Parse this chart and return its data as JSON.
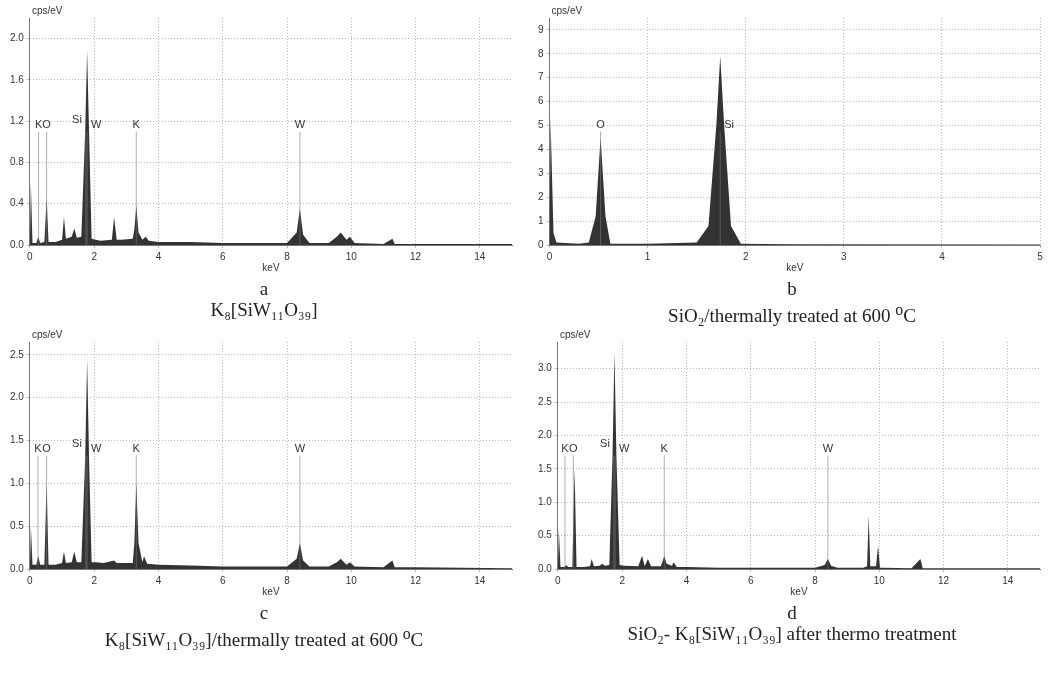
{
  "chart_data": [
    {
      "type": "area",
      "title": "a",
      "subtitle": "K₈[SiW₁₁O₃₉]",
      "xlabel": "keV",
      "ylabel": "cps/eV",
      "xlim": [
        0,
        15
      ],
      "xticks": [
        0,
        2,
        4,
        6,
        8,
        10,
        12,
        14
      ],
      "ylim": [
        0,
        2.2
      ],
      "yticks": [
        {
          "value": 0,
          "label": "0.0"
        },
        0.4,
        0.8,
        1.2,
        1.6,
        {
          "value": 2,
          "label": "2.0"
        }
      ],
      "grid": true,
      "series": [
        {
          "color": "#333333",
          "x": [
            0,
            0.03,
            0.08,
            0.2,
            0.26,
            0.32,
            0.45,
            0.52,
            0.58,
            0.8,
            1.0,
            1.06,
            1.12,
            1.3,
            1.38,
            1.46,
            1.6,
            1.72,
            1.78,
            1.84,
            1.92,
            2.05,
            2.2,
            2.55,
            2.62,
            2.7,
            2.85,
            3.2,
            3.25,
            3.31,
            3.38,
            3.5,
            3.6,
            3.7,
            4,
            5,
            6,
            7,
            7.5,
            8,
            8.3,
            8.4,
            8.5,
            8.7,
            9.3,
            9.55,
            9.67,
            9.85,
            9.96,
            10.1,
            11,
            11.28,
            11.35,
            12,
            15
          ],
          "values": [
            0,
            0.6,
            0.02,
            0.02,
            0.08,
            0.02,
            0.03,
            0.45,
            0.03,
            0.03,
            0.05,
            0.27,
            0.06,
            0.08,
            0.16,
            0.07,
            0.08,
            1.1,
            1.88,
            1.1,
            0.06,
            0.05,
            0.04,
            0.05,
            0.27,
            0.05,
            0.05,
            0.06,
            0.15,
            0.38,
            0.12,
            0.05,
            0.08,
            0.04,
            0.03,
            0.03,
            0.02,
            0.02,
            0.02,
            0.02,
            0.12,
            0.35,
            0.1,
            0.02,
            0.02,
            0.08,
            0.12,
            0.05,
            0.08,
            0.02,
            0.01,
            0.06,
            0.01,
            0.01,
            0.01
          ]
        }
      ],
      "ref_lines": [
        {
          "axis": "x",
          "value": 0.27,
          "label": "K"
        },
        {
          "axis": "x",
          "value": 0.52,
          "label": "O"
        },
        {
          "axis": "x",
          "value": 1.74,
          "label": "Si"
        },
        {
          "axis": "x",
          "value": 1.78,
          "label": "W"
        },
        {
          "axis": "x",
          "value": 3.31,
          "label": "K"
        },
        {
          "axis": "x",
          "value": 8.4,
          "label": "W"
        }
      ]
    },
    {
      "type": "area",
      "title": "b",
      "subtitle": "SiO₂/thermally treated at 600 $^{o}$C",
      "xlabel": "keV",
      "ylabel": "cps/eV",
      "xlim": [
        0,
        5
      ],
      "xticks": [
        0,
        1,
        2,
        3,
        4,
        5
      ],
      "ylim": [
        0,
        9.5
      ],
      "yticks": [
        0,
        1,
        2,
        3,
        4,
        5,
        6,
        7,
        8,
        9
      ],
      "grid": true,
      "series": [
        {
          "color": "#333333",
          "x": [
            0,
            0.01,
            0.04,
            0.07,
            0.3,
            0.4,
            0.47,
            0.52,
            0.57,
            0.62,
            1,
            1.5,
            1.62,
            1.7,
            1.74,
            1.78,
            1.85,
            1.95,
            2.5,
            5
          ],
          "values": [
            0,
            5.3,
            0.5,
            0.1,
            0.05,
            0.1,
            1.2,
            4.5,
            1.2,
            0.05,
            0.05,
            0.1,
            0.8,
            5,
            7.9,
            5,
            0.8,
            0.05,
            0.03,
            0.02
          ]
        }
      ],
      "ref_lines": [
        {
          "axis": "x",
          "value": 0.52,
          "label": "O"
        },
        {
          "axis": "x",
          "value": 1.74,
          "label": "Si"
        }
      ]
    },
    {
      "type": "area",
      "title": "c",
      "subtitle": "K₈[SiW₁₁O₃₉]/thermally treated at 600 $^{o}$C",
      "xlabel": "keV",
      "ylabel": "cps/eV",
      "xlim": [
        0,
        15
      ],
      "xticks": [
        0,
        2,
        4,
        6,
        8,
        10,
        12,
        14
      ],
      "ylim": [
        0,
        2.65
      ],
      "yticks": [
        {
          "value": 0,
          "label": "0.0"
        },
        0.5,
        {
          "value": 1,
          "label": "1.0"
        },
        1.5,
        {
          "value": 2,
          "label": "2.0"
        },
        2.5
      ],
      "grid": true,
      "series": [
        {
          "color": "#333333",
          "x": [
            0,
            0.03,
            0.08,
            0.2,
            0.26,
            0.32,
            0.45,
            0.52,
            0.58,
            0.8,
            1.0,
            1.06,
            1.12,
            1.3,
            1.38,
            1.46,
            1.6,
            1.72,
            1.78,
            1.84,
            1.92,
            2.05,
            2.3,
            2.62,
            2.7,
            3.2,
            3.25,
            3.31,
            3.38,
            3.5,
            3.55,
            3.65,
            4,
            5,
            6,
            7,
            7.5,
            8,
            8.3,
            8.4,
            8.5,
            8.7,
            9.3,
            9.55,
            9.67,
            9.85,
            9.96,
            10.1,
            11,
            11.28,
            11.35,
            12,
            15
          ],
          "values": [
            0,
            0.5,
            0.05,
            0.05,
            0.15,
            0.05,
            0.05,
            1,
            0.05,
            0.05,
            0.07,
            0.2,
            0.07,
            0.08,
            0.2,
            0.08,
            0.08,
            1.3,
            2.45,
            1.3,
            0.08,
            0.08,
            0.07,
            0.1,
            0.07,
            0.07,
            0.3,
            1,
            0.3,
            0.08,
            0.15,
            0.06,
            0.05,
            0.04,
            0.03,
            0.03,
            0.03,
            0.03,
            0.12,
            0.3,
            0.1,
            0.03,
            0.03,
            0.08,
            0.12,
            0.05,
            0.08,
            0.03,
            0.02,
            0.1,
            0.02,
            0.02,
            0.01
          ]
        }
      ],
      "ref_lines": [
        {
          "axis": "x",
          "value": 0.25,
          "label": "K"
        },
        {
          "axis": "x",
          "value": 0.52,
          "label": "O"
        },
        {
          "axis": "x",
          "value": 1.74,
          "label": "Si"
        },
        {
          "axis": "x",
          "value": 1.78,
          "label": "W"
        },
        {
          "axis": "x",
          "value": 3.31,
          "label": "K"
        },
        {
          "axis": "x",
          "value": 8.4,
          "label": "W"
        }
      ]
    },
    {
      "type": "area",
      "title": "d",
      "subtitle": "SiO₂- K₈[SiW₁₁O₃₉] after thermo treatment",
      "xlabel": "keV",
      "ylabel": "cps/eV",
      "xlim": [
        0,
        15
      ],
      "xticks": [
        0,
        2,
        4,
        6,
        8,
        10,
        12,
        14
      ],
      "ylim": [
        0,
        3.4
      ],
      "yticks": [
        {
          "value": 0,
          "label": "0.0"
        },
        0.5,
        {
          "value": 1,
          "label": "1.0"
        },
        1.5,
        {
          "value": 2,
          "label": "2.0"
        },
        2.5,
        {
          "value": 3,
          "label": "3.0"
        }
      ],
      "grid": true,
      "series": [
        {
          "color": "#333333",
          "x": [
            0,
            0.03,
            0.08,
            0.2,
            0.26,
            0.32,
            0.45,
            0.52,
            0.58,
            0.8,
            1.0,
            1.05,
            1.12,
            1.3,
            1.38,
            1.46,
            1.6,
            1.7,
            1.76,
            1.82,
            1.92,
            2.05,
            2.5,
            2.62,
            2.7,
            2.8,
            2.9,
            3.2,
            3.25,
            3.31,
            3.38,
            3.55,
            3.6,
            3.7,
            4,
            5,
            6,
            7,
            8,
            8.3,
            8.4,
            8.5,
            8.7,
            9.5,
            9.62,
            9.67,
            9.72,
            9.9,
            9.96,
            10.02,
            10.1,
            11,
            11.28,
            11.35,
            12,
            15
          ],
          "values": [
            0,
            0.6,
            0.03,
            0.03,
            0.06,
            0.03,
            0.03,
            1.5,
            0.03,
            0.03,
            0.04,
            0.15,
            0.04,
            0.05,
            0.08,
            0.05,
            0.06,
            1.7,
            3.25,
            1.7,
            0.06,
            0.05,
            0.04,
            0.2,
            0.04,
            0.15,
            0.04,
            0.04,
            0.1,
            0.2,
            0.08,
            0.05,
            0.1,
            0.03,
            0.03,
            0.02,
            0.02,
            0.02,
            0.02,
            0.06,
            0.15,
            0.05,
            0.02,
            0.02,
            0.04,
            0.8,
            0.04,
            0.04,
            0.35,
            0.02,
            0.02,
            0.01,
            0.15,
            0.01,
            0.01,
            0.01
          ]
        }
      ],
      "ref_lines": [
        {
          "axis": "x",
          "value": 0.22,
          "label": "K"
        },
        {
          "axis": "x",
          "value": 0.48,
          "label": "O"
        },
        {
          "axis": "x",
          "value": 1.74,
          "label": "Si"
        },
        {
          "axis": "x",
          "value": 1.78,
          "label": "W"
        },
        {
          "axis": "x",
          "value": 3.31,
          "label": "K"
        },
        {
          "axis": "x",
          "value": 8.4,
          "label": "W"
        }
      ]
    }
  ]
}
